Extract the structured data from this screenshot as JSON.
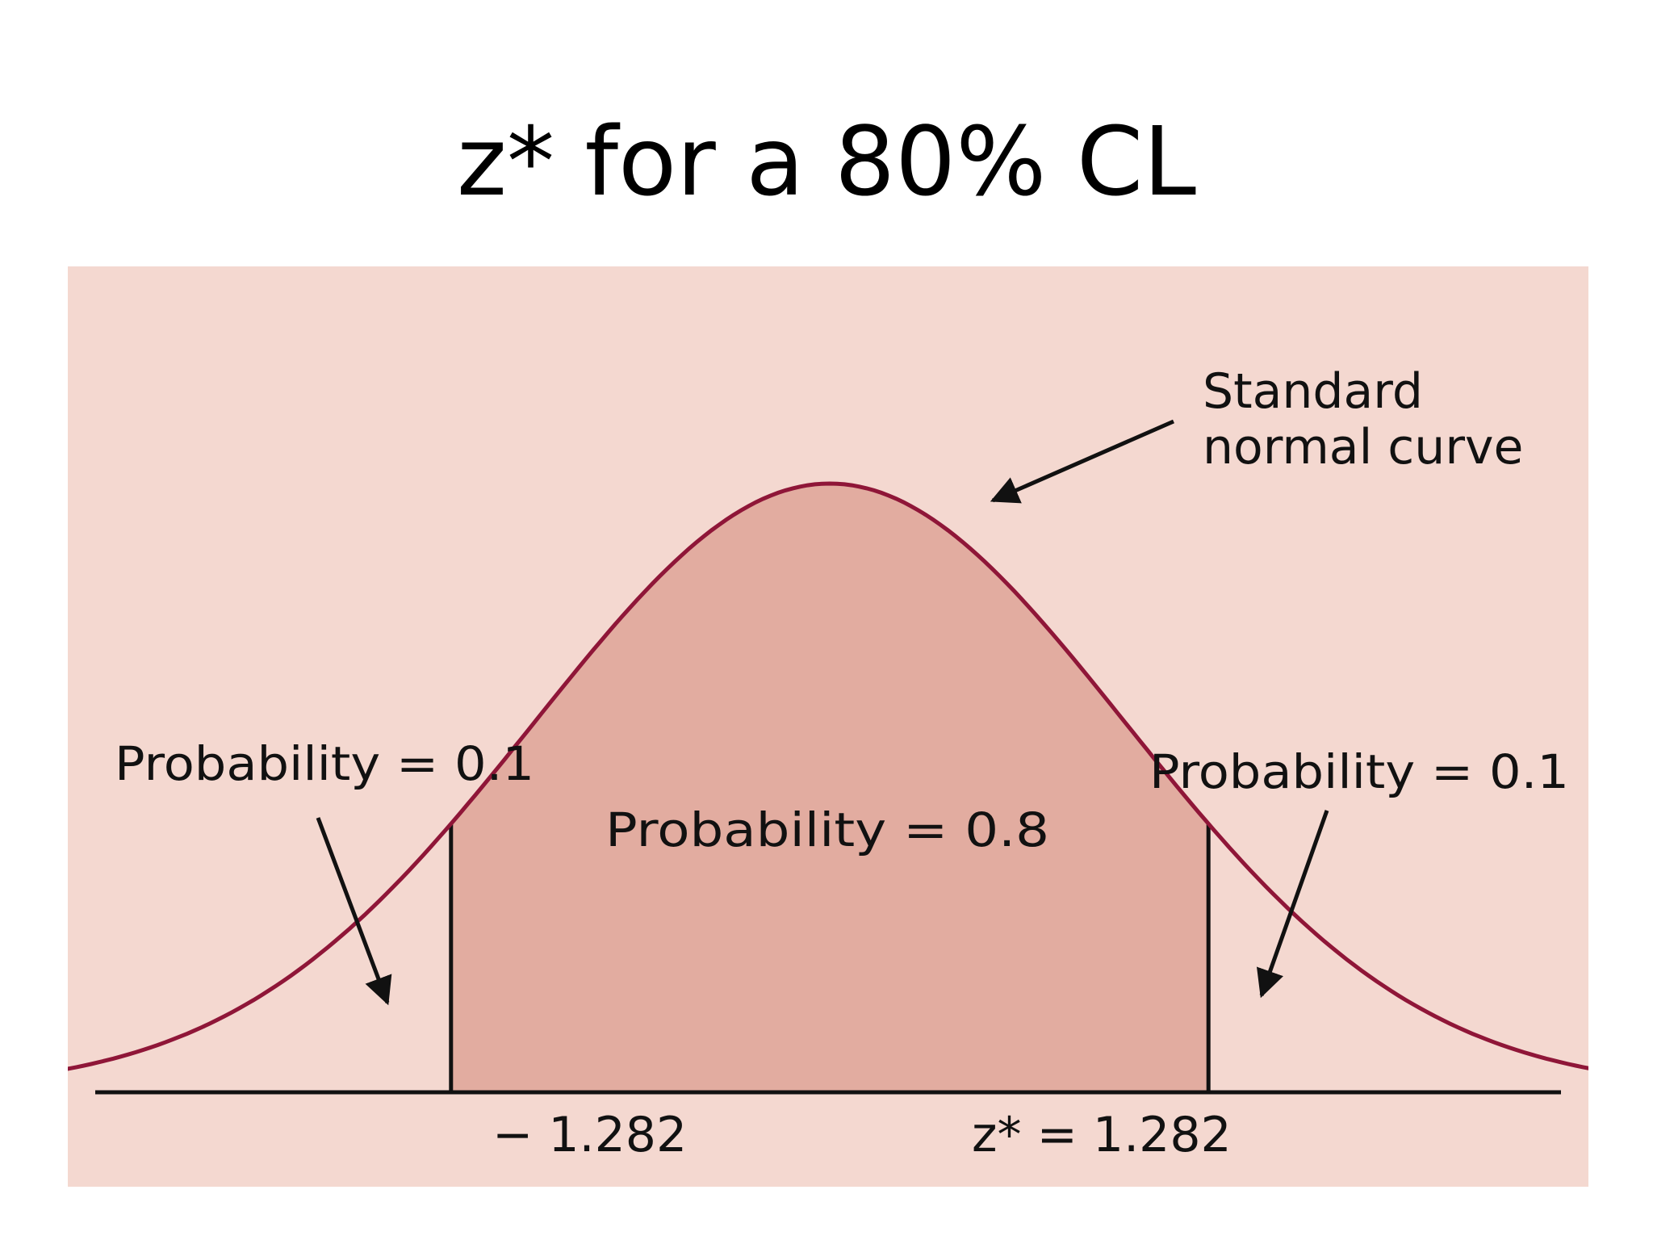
{
  "title": "z* for a 80% CL",
  "colors": {
    "panel_bg": "#f4d8d0",
    "center_fill": "#e2aca0",
    "curve": "#8f1638",
    "ink": "#111111"
  },
  "diagram": {
    "curve_label_line1": "Standard",
    "curve_label_line2": "normal curve",
    "left_tail_label": "Probability = 0.1",
    "right_tail_label": "Probability = 0.1",
    "center_label": "Probability = 0.8",
    "left_cut_label": "− 1.282",
    "right_cut_label": "z* = 1.282",
    "cutoff_z": 1.282,
    "center_probability": 0.8,
    "tail_probability": 0.1
  }
}
